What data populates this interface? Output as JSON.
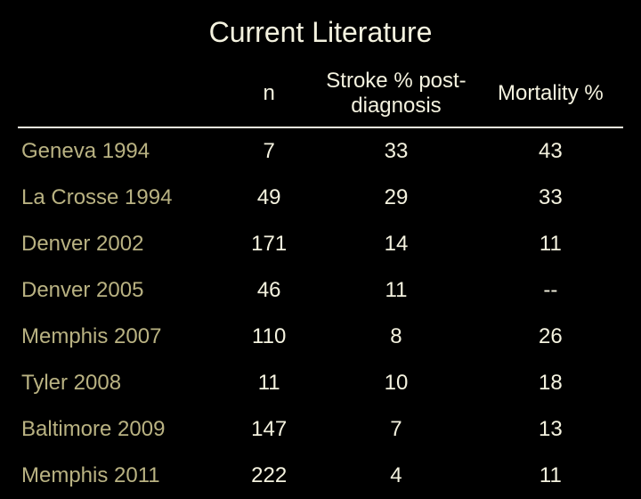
{
  "title": "Current Literature",
  "table": {
    "type": "table",
    "background_color": "#000000",
    "heading_color": "#f4f2df",
    "text_color": "#f4f2df",
    "study_color": "#b9b282",
    "rule_color": "#f4f2df",
    "title_fontsize": 32,
    "cell_fontsize": 24,
    "columns": [
      {
        "label": "",
        "align": "left",
        "width_pct": 34
      },
      {
        "label": "n",
        "align": "center",
        "width_pct": 15
      },
      {
        "label": "Stroke % post-diagnosis",
        "align": "center",
        "width_pct": 27
      },
      {
        "label": "Mortality %",
        "align": "center",
        "width_pct": 24
      }
    ],
    "rows": [
      {
        "study": "Geneva 1994",
        "n": "7",
        "stroke": "33",
        "mortality": "43"
      },
      {
        "study": "La Crosse 1994",
        "n": "49",
        "stroke": "29",
        "mortality": "33"
      },
      {
        "study": "Denver 2002",
        "n": "171",
        "stroke": "14",
        "mortality": "11"
      },
      {
        "study": "Denver 2005",
        "n": "46",
        "stroke": "11",
        "mortality": "--"
      },
      {
        "study": "Memphis 2007",
        "n": "110",
        "stroke": "8",
        "mortality": "26"
      },
      {
        "study": "Tyler 2008",
        "n": "11",
        "stroke": "10",
        "mortality": "18"
      },
      {
        "study": "Baltimore 2009",
        "n": "147",
        "stroke": "7",
        "mortality": "13"
      },
      {
        "study": "Memphis 2011",
        "n": "222",
        "stroke": "4",
        "mortality": "11"
      }
    ]
  }
}
